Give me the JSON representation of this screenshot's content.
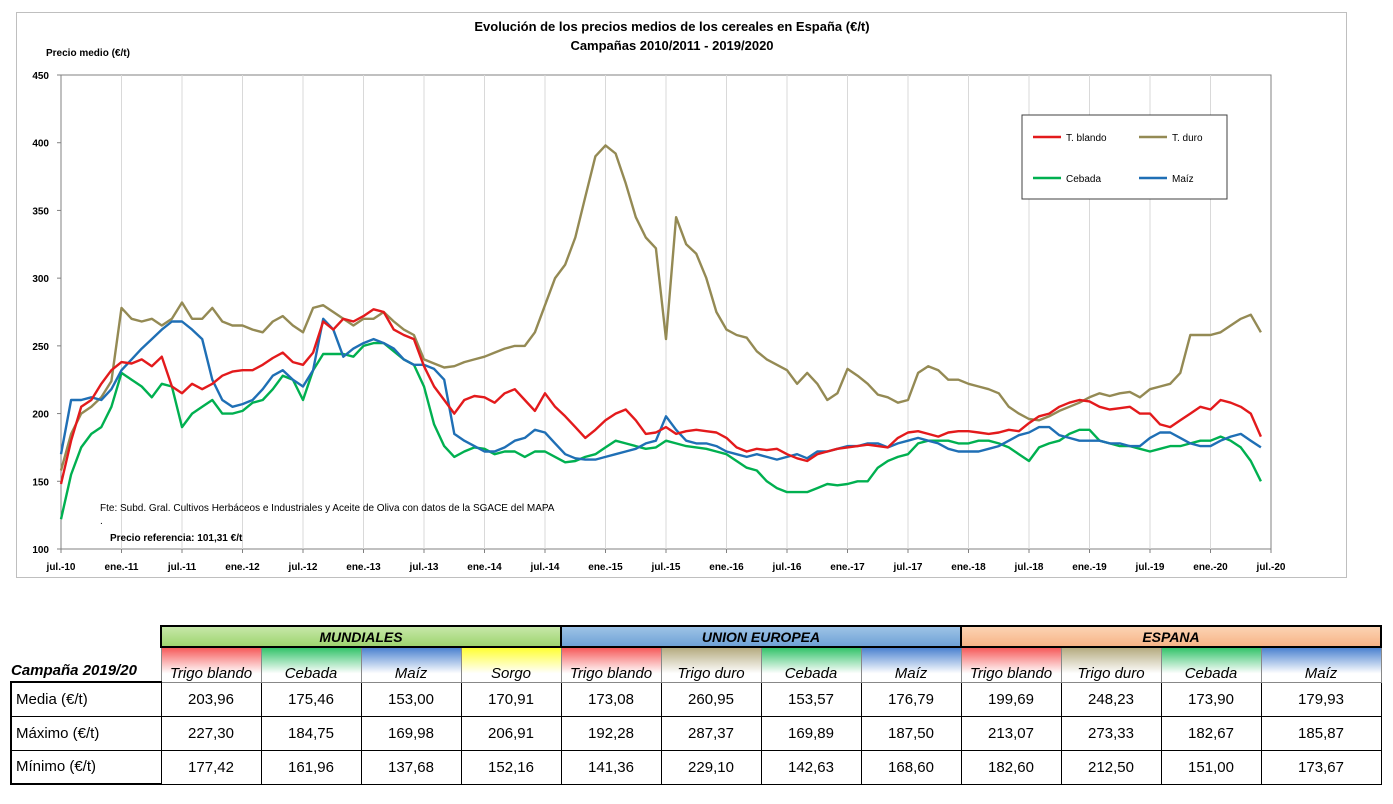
{
  "chart_data": {
    "type": "line",
    "title": "Evolución de los precios medios de los cereales en España (€/t)",
    "subtitle": "Campañas 2010/2011 - 2019/2020",
    "ylabel": "Precio medio (€/t)",
    "ylim": [
      100,
      450
    ],
    "yticks": [
      "100",
      "150",
      "200",
      "250",
      "300",
      "350",
      "400",
      "450"
    ],
    "xlim": [
      0,
      120
    ],
    "xticks": [
      {
        "m": 0,
        "label": "jul.-10"
      },
      {
        "m": 6,
        "label": "ene.-11"
      },
      {
        "m": 12,
        "label": "jul.-11"
      },
      {
        "m": 18,
        "label": "ene.-12"
      },
      {
        "m": 24,
        "label": "jul.-12"
      },
      {
        "m": 30,
        "label": "ene.-13"
      },
      {
        "m": 36,
        "label": "jul.-13"
      },
      {
        "m": 42,
        "label": "ene.-14"
      },
      {
        "m": 48,
        "label": "jul.-14"
      },
      {
        "m": 54,
        "label": "ene.-15"
      },
      {
        "m": 60,
        "label": "jul.-15"
      },
      {
        "m": 66,
        "label": "ene.-16"
      },
      {
        "m": 72,
        "label": "jul.-16"
      },
      {
        "m": 78,
        "label": "ene.-17"
      },
      {
        "m": 84,
        "label": "jul.-17"
      },
      {
        "m": 90,
        "label": "ene.-18"
      },
      {
        "m": 96,
        "label": "jul.-18"
      },
      {
        "m": 102,
        "label": "ene.-19"
      },
      {
        "m": 108,
        "label": "jul.-19"
      },
      {
        "m": 114,
        "label": "ene.-20"
      },
      {
        "m": 120,
        "label": "jul.-20"
      }
    ],
    "grid": "vertical",
    "legend_position": "top-right",
    "source_note": "Fte: Subd. Gral. Cultivos Herbáceos e Industriales y Aceite de Oliva con datos de la SGACE del MAPA",
    "note_dot": ".",
    "reference_note": "Precio referencia: 101,31 €/t",
    "series": [
      {
        "name": "T. blando",
        "color": "#e31a1c",
        "x": [
          0,
          1,
          2,
          3,
          4,
          5,
          6,
          7,
          8,
          9,
          10,
          11,
          12,
          13,
          14,
          15,
          16,
          17,
          18,
          19,
          20,
          21,
          22,
          23,
          24,
          25,
          26,
          27,
          28,
          29,
          30,
          31,
          32,
          33,
          34,
          35,
          36,
          37,
          38,
          39,
          40,
          41,
          42,
          43,
          44,
          45,
          46,
          47,
          48,
          49,
          50,
          51,
          52,
          53,
          54,
          55,
          56,
          57,
          58,
          59,
          60,
          61,
          62,
          63,
          64,
          65,
          66,
          67,
          68,
          69,
          70,
          71,
          72,
          73,
          74,
          75,
          76,
          77,
          78,
          79,
          80,
          81,
          82,
          83,
          84,
          85,
          86,
          87,
          88,
          89,
          90,
          91,
          92,
          93,
          94,
          95,
          96,
          97,
          98,
          99,
          100,
          101,
          102,
          103,
          104,
          105,
          106,
          107,
          108,
          109,
          110,
          111,
          112,
          113,
          114,
          115,
          116,
          117,
          118,
          119
        ],
        "values": [
          148,
          180,
          205,
          210,
          222,
          232,
          238,
          237,
          240,
          235,
          242,
          220,
          215,
          222,
          218,
          222,
          228,
          231,
          232,
          232,
          236,
          241,
          245,
          238,
          236,
          245,
          268,
          262,
          270,
          268,
          272,
          277,
          275,
          262,
          258,
          255,
          235,
          220,
          210,
          200,
          210,
          213,
          212,
          208,
          215,
          218,
          210,
          202,
          215,
          205,
          198,
          190,
          182,
          188,
          195,
          200,
          203,
          195,
          185,
          186,
          190,
          185,
          187,
          188,
          187,
          186,
          182,
          175,
          172,
          174,
          173,
          174,
          170,
          167,
          165,
          170,
          172,
          174,
          175,
          176,
          177,
          176,
          175,
          182,
          186,
          187,
          185,
          183,
          186,
          187,
          187,
          186,
          185,
          186,
          188,
          187,
          193,
          198,
          200,
          205,
          208,
          210,
          209,
          205,
          203,
          204,
          205,
          200,
          200,
          192,
          190,
          195,
          200,
          205,
          203,
          210,
          208,
          205,
          200,
          183
        ]
      },
      {
        "name": "T. duro",
        "color": "#948a54",
        "x": [
          0,
          1,
          2,
          3,
          4,
          5,
          6,
          7,
          8,
          9,
          10,
          11,
          12,
          13,
          14,
          15,
          16,
          17,
          18,
          19,
          20,
          21,
          22,
          23,
          24,
          25,
          26,
          27,
          28,
          29,
          30,
          31,
          32,
          33,
          34,
          35,
          36,
          37,
          38,
          39,
          40,
          41,
          42,
          43,
          44,
          45,
          46,
          47,
          48,
          49,
          50,
          51,
          52,
          53,
          54,
          55,
          56,
          57,
          58,
          59,
          60,
          61,
          62,
          63,
          64,
          65,
          66,
          67,
          68,
          69,
          70,
          71,
          72,
          73,
          74,
          75,
          76,
          77,
          78,
          79,
          80,
          81,
          82,
          83,
          84,
          85,
          86,
          87,
          88,
          89,
          90,
          91,
          92,
          93,
          94,
          95,
          96,
          97,
          98,
          99,
          100,
          101,
          102,
          103,
          104,
          105,
          106,
          107,
          108,
          109,
          110,
          111,
          112,
          113,
          114,
          115,
          116,
          117,
          118,
          119
        ],
        "values": [
          158,
          185,
          200,
          205,
          212,
          224,
          278,
          270,
          268,
          270,
          265,
          270,
          282,
          270,
          270,
          278,
          268,
          265,
          265,
          262,
          260,
          268,
          272,
          265,
          260,
          278,
          280,
          275,
          270,
          265,
          270,
          270,
          275,
          268,
          262,
          258,
          240,
          237,
          234,
          235,
          238,
          240,
          242,
          245,
          248,
          250,
          250,
          260,
          280,
          300,
          310,
          330,
          360,
          390,
          398,
          392,
          370,
          345,
          330,
          322,
          255,
          345,
          325,
          318,
          300,
          275,
          262,
          258,
          256,
          246,
          240,
          236,
          232,
          222,
          230,
          222,
          210,
          215,
          233,
          228,
          222,
          214,
          212,
          208,
          210,
          230,
          235,
          232,
          225,
          225,
          222,
          220,
          218,
          215,
          205,
          200,
          196,
          195,
          198,
          202,
          205,
          208,
          212,
          215,
          213,
          215,
          216,
          212,
          218,
          220,
          222,
          230,
          258,
          258,
          258,
          260,
          265,
          270,
          273,
          260
        ]
      },
      {
        "name": "Cebada",
        "color": "#00b050",
        "x": [
          0,
          1,
          2,
          3,
          4,
          5,
          6,
          7,
          8,
          9,
          10,
          11,
          12,
          13,
          14,
          15,
          16,
          17,
          18,
          19,
          20,
          21,
          22,
          23,
          24,
          25,
          26,
          27,
          28,
          29,
          30,
          31,
          32,
          33,
          34,
          35,
          36,
          37,
          38,
          39,
          40,
          41,
          42,
          43,
          44,
          45,
          46,
          47,
          48,
          49,
          50,
          51,
          52,
          53,
          54,
          55,
          56,
          57,
          58,
          59,
          60,
          61,
          62,
          63,
          64,
          65,
          66,
          67,
          68,
          69,
          70,
          71,
          72,
          73,
          74,
          75,
          76,
          77,
          78,
          79,
          80,
          81,
          82,
          83,
          84,
          85,
          86,
          87,
          88,
          89,
          90,
          91,
          92,
          93,
          94,
          95,
          96,
          97,
          98,
          99,
          100,
          101,
          102,
          103,
          104,
          105,
          106,
          107,
          108,
          109,
          110,
          111,
          112,
          113,
          114,
          115,
          116,
          117,
          118,
          119
        ],
        "values": [
          122,
          155,
          175,
          185,
          190,
          205,
          230,
          225,
          220,
          212,
          222,
          220,
          190,
          200,
          205,
          210,
          200,
          200,
          202,
          208,
          210,
          218,
          228,
          225,
          210,
          232,
          244,
          244,
          244,
          242,
          250,
          252,
          252,
          246,
          240,
          236,
          220,
          192,
          176,
          168,
          172,
          175,
          174,
          170,
          172,
          172,
          168,
          172,
          172,
          168,
          164,
          165,
          168,
          170,
          175,
          180,
          178,
          176,
          174,
          175,
          180,
          178,
          176,
          175,
          174,
          172,
          170,
          165,
          160,
          158,
          150,
          145,
          142,
          142,
          142,
          145,
          148,
          147,
          148,
          150,
          150,
          160,
          165,
          168,
          170,
          178,
          180,
          180,
          180,
          178,
          178,
          180,
          180,
          178,
          175,
          170,
          165,
          175,
          178,
          180,
          185,
          188,
          188,
          180,
          178,
          176,
          176,
          174,
          172,
          174,
          176,
          176,
          178,
          180,
          180,
          183,
          180,
          175,
          165,
          150
        ]
      },
      {
        "name": "Maíz",
        "color": "#1f6fb5",
        "x": [
          0,
          1,
          2,
          3,
          4,
          5,
          6,
          7,
          8,
          9,
          10,
          11,
          12,
          13,
          14,
          15,
          16,
          17,
          18,
          19,
          20,
          21,
          22,
          23,
          24,
          25,
          26,
          27,
          28,
          29,
          30,
          31,
          32,
          33,
          34,
          35,
          36,
          37,
          38,
          39,
          40,
          41,
          42,
          43,
          44,
          45,
          46,
          47,
          48,
          49,
          50,
          51,
          52,
          53,
          54,
          55,
          56,
          57,
          58,
          59,
          60,
          61,
          62,
          63,
          64,
          65,
          66,
          67,
          68,
          69,
          70,
          71,
          72,
          73,
          74,
          75,
          76,
          77,
          78,
          79,
          80,
          81,
          82,
          83,
          84,
          85,
          86,
          87,
          88,
          89,
          90,
          91,
          92,
          93,
          94,
          95,
          96,
          97,
          98,
          99,
          100,
          101,
          102,
          103,
          104,
          105,
          106,
          107,
          108,
          109,
          110,
          111,
          112,
          113,
          114,
          115,
          116,
          117,
          118,
          119
        ],
        "values": [
          170,
          210,
          210,
          212,
          210,
          218,
          232,
          240,
          248,
          255,
          262,
          268,
          268,
          262,
          255,
          225,
          210,
          205,
          207,
          210,
          218,
          228,
          232,
          225,
          220,
          232,
          270,
          262,
          242,
          248,
          252,
          255,
          252,
          248,
          240,
          236,
          236,
          233,
          225,
          185,
          180,
          176,
          172,
          172,
          175,
          180,
          182,
          188,
          186,
          178,
          170,
          167,
          166,
          166,
          168,
          170,
          172,
          174,
          178,
          180,
          198,
          188,
          180,
          178,
          178,
          176,
          172,
          170,
          168,
          170,
          168,
          166,
          168,
          170,
          167,
          172,
          172,
          174,
          176,
          176,
          178,
          178,
          175,
          178,
          180,
          182,
          180,
          178,
          174,
          172,
          172,
          172,
          174,
          176,
          180,
          184,
          186,
          190,
          190,
          184,
          182,
          180,
          180,
          180,
          178,
          178,
          176,
          176,
          182,
          186,
          186,
          182,
          178,
          176,
          176,
          180,
          183,
          185,
          180,
          175
        ]
      }
    ]
  },
  "table": {
    "corner_label": "Campaña 2019/20",
    "groups": [
      "MUNDIALES",
      "UNION EUROPEA",
      "ESPANA"
    ],
    "columns": [
      "Trigo blando",
      "Cebada",
      "Maíz",
      "Sorgo",
      "Trigo blando",
      "Trigo duro",
      "Cebada",
      "Maíz",
      "Trigo blando",
      "Trigo duro",
      "Cebada",
      "Maíz"
    ],
    "rows": [
      {
        "label": "Media (€/t)",
        "values": [
          "203,96",
          "175,46",
          "153,00",
          "170,91",
          "173,08",
          "260,95",
          "153,57",
          "176,79",
          "199,69",
          "248,23",
          "173,90",
          "179,93"
        ]
      },
      {
        "label": "Máximo (€/t)",
        "values": [
          "227,30",
          "184,75",
          "169,98",
          "206,91",
          "192,28",
          "287,37",
          "169,89",
          "187,50",
          "213,07",
          "273,33",
          "182,67",
          "185,87"
        ]
      },
      {
        "label": "Mínimo (€/t)",
        "values": [
          "177,42",
          "161,96",
          "137,68",
          "152,16",
          "141,36",
          "229,10",
          "142,63",
          "168,60",
          "182,60",
          "212,50",
          "151,00",
          "173,67"
        ]
      }
    ]
  }
}
